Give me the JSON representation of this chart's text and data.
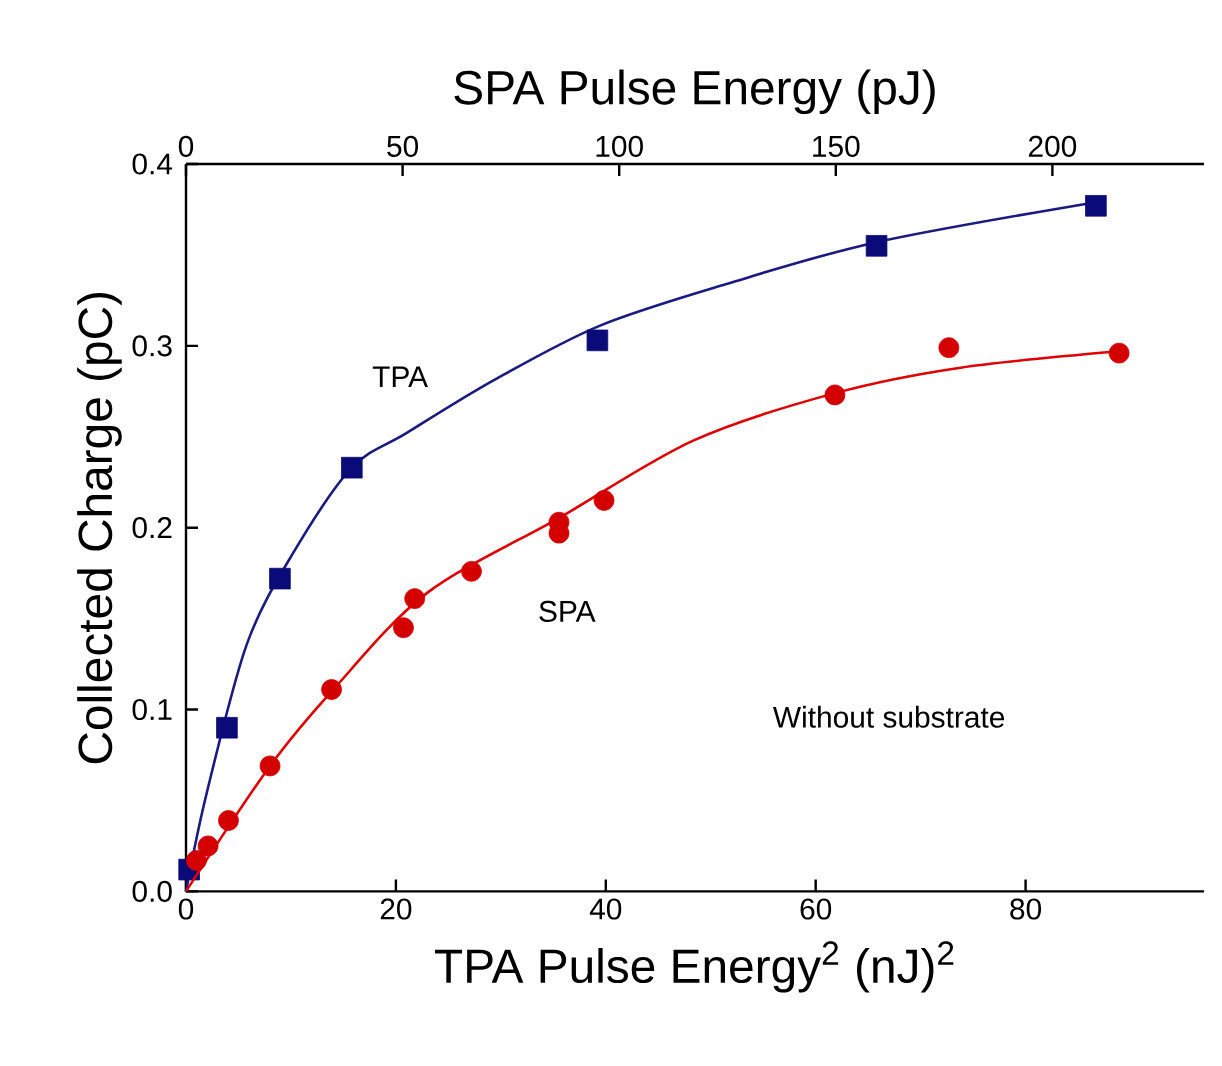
{
  "chart_data": {
    "type": "scatter",
    "xlabel": "TPA Pulse Energy$^{2}$ (nJ)$^{2}$",
    "x2label": "SPA Pulse Energy (pJ)",
    "ylabel": "Collected Charge (pC)",
    "xlim": [
      0,
      97
    ],
    "xticks": [
      0,
      20,
      40,
      60,
      80
    ],
    "x2lim": [
      0,
      235
    ],
    "x2ticks": [
      0,
      50,
      100,
      150,
      200
    ],
    "ylim": [
      0,
      0.4
    ],
    "yticks": [
      {
        "value": 0,
        "label": "0.0"
      },
      {
        "value": 0.1,
        "label": "0.1"
      },
      {
        "value": 0.2,
        "label": "0.2"
      },
      {
        "value": 0.3,
        "label": "0.3"
      },
      {
        "value": 0.4,
        "label": "0.4"
      }
    ],
    "series": [
      {
        "name": "TPA",
        "marker": "square",
        "color": "#0a0a78",
        "x": [
          0.3,
          3.9,
          8.95,
          15.8,
          39.2,
          65.8,
          86.7
        ],
        "values": [
          0.012,
          0.09,
          0.172,
          0.233,
          0.303,
          0.355,
          0.377
        ]
      },
      {
        "type": "line",
        "marker": "none",
        "color": "#1a1a80",
        "x": [
          0,
          1.97,
          5.8,
          10.2,
          15.8,
          21,
          29.3,
          39.4,
          51.5,
          65.8,
          86.7
        ],
        "values": [
          0,
          0.054,
          0.136,
          0.186,
          0.233,
          0.252,
          0.281,
          0.311,
          0.334,
          0.357,
          0.379
        ]
      },
      {
        "name": "SPA",
        "marker": "circle",
        "axis": "x2",
        "color": "#d40000",
        "x": [
          2.4,
          5.1,
          9.8,
          19.4,
          33.6,
          50.2,
          52.8,
          65.9,
          86.1,
          86.1,
          96.5,
          149.8,
          176.1,
          215.4
        ],
        "values": [
          0.017,
          0.025,
          0.039,
          0.069,
          0.111,
          0.145,
          0.161,
          0.176,
          0.197,
          0.203,
          0.215,
          0.273,
          0.299,
          0.296
        ]
      },
      {
        "type": "line",
        "marker": "none",
        "axis": "x2",
        "color": "#e00000",
        "x": [
          0,
          19.4,
          34,
          55.6,
          86.6,
          117.2,
          149.8,
          178.8,
          215.4
        ],
        "values": [
          0,
          0.069,
          0.111,
          0.164,
          0.206,
          0.248,
          0.274,
          0.288,
          0.297
        ]
      }
    ],
    "annotations": [
      "Without substrate"
    ]
  }
}
